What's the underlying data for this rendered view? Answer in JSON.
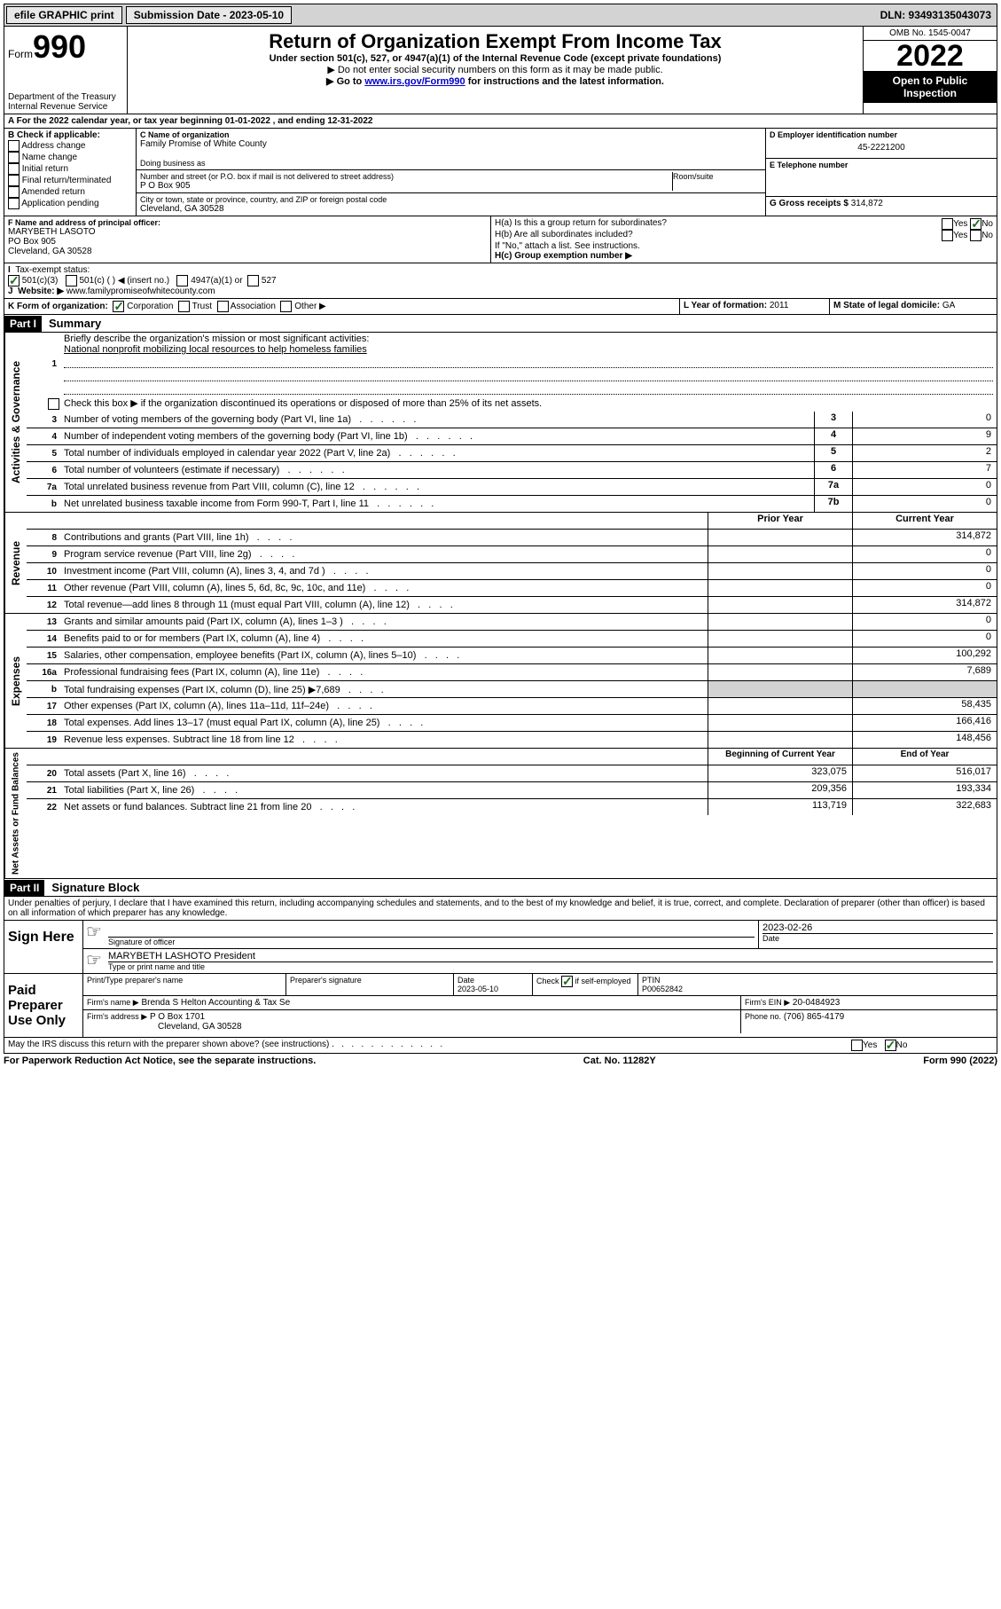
{
  "topbar": {
    "efile": "efile GRAPHIC print",
    "submission_label": "Submission Date - 2023-05-10",
    "dln_label": "DLN: 93493135043073"
  },
  "header": {
    "form_prefix": "Form",
    "form_number": "990",
    "dept": "Department of the Treasury",
    "irs": "Internal Revenue Service",
    "title": "Return of Organization Exempt From Income Tax",
    "subtitle": "Under section 501(c), 527, or 4947(a)(1) of the Internal Revenue Code (except private foundations)",
    "note1": "▶ Do not enter social security numbers on this form as it may be made public.",
    "note2_pre": "▶ Go to ",
    "note2_link": "www.irs.gov/Form990",
    "note2_post": " for instructions and the latest information.",
    "omb": "OMB No. 1545-0047",
    "year": "2022",
    "inspect": "Open to Public Inspection"
  },
  "lineA": {
    "text_pre": "A For the 2022 calendar year, or tax year beginning ",
    "begin": "01-01-2022",
    "mid": " , and ending ",
    "end": "12-31-2022"
  },
  "boxB": {
    "label": "B Check if applicable:",
    "items": [
      "Address change",
      "Name change",
      "Initial return",
      "Final return/terminated",
      "Amended return",
      "Application pending"
    ]
  },
  "boxC": {
    "name_label": "C Name of organization",
    "name": "Family Promise of White County",
    "dba_label": "Doing business as",
    "street_label": "Number and street (or P.O. box if mail is not delivered to street address)",
    "room_label": "Room/suite",
    "street": "P O Box 905",
    "city_label": "City or town, state or province, country, and ZIP or foreign postal code",
    "city": "Cleveland, GA  30528"
  },
  "boxD": {
    "label": "D Employer identification number",
    "value": "45-2221200"
  },
  "boxE": {
    "label": "E Telephone number"
  },
  "boxG": {
    "label": "G Gross receipts $",
    "value": "314,872"
  },
  "boxF": {
    "label": "F Name and address of principal officer:",
    "name": "MARYBETH LASOTO",
    "addr1": "PO Box 905",
    "addr2": "Cleveland, GA  30528"
  },
  "boxH": {
    "a_label": "H(a)  Is this a group return for subordinates?",
    "b_label": "H(b)  Are all subordinates included?",
    "b_note": "If \"No,\" attach a list. See instructions.",
    "c_label": "H(c)  Group exemption number ▶",
    "yes": "Yes",
    "no": "No"
  },
  "lineI": {
    "label": "Tax-exempt status:",
    "opts": [
      "501(c)(3)",
      "501(c) (  ) ◀ (insert no.)",
      "4947(a)(1) or",
      "527"
    ]
  },
  "lineJ": {
    "label": "Website: ▶",
    "value": "www.familypromiseofwhitecounty.com"
  },
  "lineK": {
    "label": "K Form of organization:",
    "opts": [
      "Corporation",
      "Trust",
      "Association",
      "Other ▶"
    ]
  },
  "lineL": {
    "label": "L Year of formation:",
    "value": "2011"
  },
  "lineM": {
    "label": "M State of legal domicile:",
    "value": "GA"
  },
  "part1": {
    "header": "Part I",
    "title": "Summary",
    "side_gov": "Activities & Governance",
    "side_rev": "Revenue",
    "side_exp": "Expenses",
    "side_net": "Net Assets or Fund Balances",
    "l1": "Briefly describe the organization's mission or most significant activities:",
    "l1_text": "National nonprofit mobilizing local resources to help homeless families",
    "l2": "Check this box ▶        if the organization discontinued its operations or disposed of more than 25% of its net assets.",
    "rows_gov": [
      {
        "n": "3",
        "t": "Number of voting members of the governing body (Part VI, line 1a)",
        "k": "3",
        "v": "0"
      },
      {
        "n": "4",
        "t": "Number of independent voting members of the governing body (Part VI, line 1b)",
        "k": "4",
        "v": "9"
      },
      {
        "n": "5",
        "t": "Total number of individuals employed in calendar year 2022 (Part V, line 2a)",
        "k": "5",
        "v": "2"
      },
      {
        "n": "6",
        "t": "Total number of volunteers (estimate if necessary)",
        "k": "6",
        "v": "7"
      },
      {
        "n": "7a",
        "t": "Total unrelated business revenue from Part VIII, column (C), line 12",
        "k": "7a",
        "v": "0"
      },
      {
        "n": "b",
        "t": "Net unrelated business taxable income from Form 990-T, Part I, line 11",
        "k": "7b",
        "v": "0"
      }
    ],
    "col_prior": "Prior Year",
    "col_current": "Current Year",
    "rows_rev": [
      {
        "n": "8",
        "t": "Contributions and grants (Part VIII, line 1h)",
        "p": "",
        "c": "314,872"
      },
      {
        "n": "9",
        "t": "Program service revenue (Part VIII, line 2g)",
        "p": "",
        "c": "0"
      },
      {
        "n": "10",
        "t": "Investment income (Part VIII, column (A), lines 3, 4, and 7d )",
        "p": "",
        "c": "0"
      },
      {
        "n": "11",
        "t": "Other revenue (Part VIII, column (A), lines 5, 6d, 8c, 9c, 10c, and 11e)",
        "p": "",
        "c": "0"
      },
      {
        "n": "12",
        "t": "Total revenue—add lines 8 through 11 (must equal Part VIII, column (A), line 12)",
        "p": "",
        "c": "314,872"
      }
    ],
    "rows_exp": [
      {
        "n": "13",
        "t": "Grants and similar amounts paid (Part IX, column (A), lines 1–3 )",
        "p": "",
        "c": "0"
      },
      {
        "n": "14",
        "t": "Benefits paid to or for members (Part IX, column (A), line 4)",
        "p": "",
        "c": "0"
      },
      {
        "n": "15",
        "t": "Salaries, other compensation, employee benefits (Part IX, column (A), lines 5–10)",
        "p": "",
        "c": "100,292"
      },
      {
        "n": "16a",
        "t": "Professional fundraising fees (Part IX, column (A), line 11e)",
        "p": "",
        "c": "7,689"
      },
      {
        "n": "b",
        "t": "Total fundraising expenses (Part IX, column (D), line 25) ▶7,689",
        "p": null,
        "c": null
      },
      {
        "n": "17",
        "t": "Other expenses (Part IX, column (A), lines 11a–11d, 11f–24e)",
        "p": "",
        "c": "58,435"
      },
      {
        "n": "18",
        "t": "Total expenses. Add lines 13–17 (must equal Part IX, column (A), line 25)",
        "p": "",
        "c": "166,416"
      },
      {
        "n": "19",
        "t": "Revenue less expenses. Subtract line 18 from line 12",
        "p": "",
        "c": "148,456"
      }
    ],
    "col_begin": "Beginning of Current Year",
    "col_end": "End of Year",
    "rows_net": [
      {
        "n": "20",
        "t": "Total assets (Part X, line 16)",
        "p": "323,075",
        "c": "516,017"
      },
      {
        "n": "21",
        "t": "Total liabilities (Part X, line 26)",
        "p": "209,356",
        "c": "193,334"
      },
      {
        "n": "22",
        "t": "Net assets or fund balances. Subtract line 21 from line 20",
        "p": "113,719",
        "c": "322,683"
      }
    ]
  },
  "part2": {
    "header": "Part II",
    "title": "Signature Block",
    "perjury": "Under penalties of perjury, I declare that I have examined this return, including accompanying schedules and statements, and to the best of my knowledge and belief, it is true, correct, and complete. Declaration of preparer (other than officer) is based on all information of which preparer has any knowledge.",
    "sign_here": "Sign Here",
    "sig_officer": "Signature of officer",
    "sig_date": "Date",
    "sig_date_val": "2023-02-26",
    "officer_name": "MARYBETH LASHOTO  President",
    "type_name": "Type or print name and title",
    "paid_prep": "Paid Preparer Use Only",
    "pt_name_label": "Print/Type preparer's name",
    "pt_sig_label": "Preparer's signature",
    "pt_date_label": "Date",
    "pt_date": "2023-05-10",
    "pt_check_label": "Check         if self-employed",
    "ptin_label": "PTIN",
    "ptin": "P00652842",
    "firm_name_label": "Firm's name    ▶",
    "firm_name": "Brenda S Helton Accounting & Tax Se",
    "firm_ein_label": "Firm's EIN ▶",
    "firm_ein": "20-0484923",
    "firm_addr_label": "Firm's address ▶",
    "firm_addr1": "P O Box 1701",
    "firm_addr2": "Cleveland, GA  30528",
    "phone_label": "Phone no.",
    "phone": "(706) 865-4179",
    "discuss": "May the IRS discuss this return with the preparer shown above? (see instructions)"
  },
  "footer": {
    "left": "For Paperwork Reduction Act Notice, see the separate instructions.",
    "mid": "Cat. No. 11282Y",
    "right": "Form 990 (2022)"
  }
}
